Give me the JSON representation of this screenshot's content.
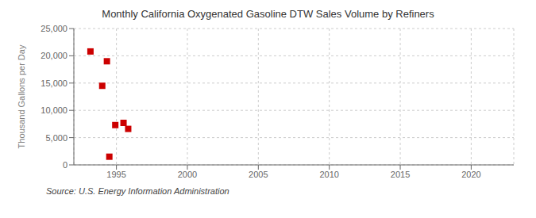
{
  "chart_data": {
    "type": "scatter",
    "title": "Monthly California Oxygenated Gasoline DTW Sales Volume by Refiners",
    "ylabel": "Thousand Gallons per Day",
    "annotation": "Source: U.S. Energy Information Administration",
    "x": [
      1993.17,
      1994.0,
      1994.33,
      1994.5,
      1994.92,
      1995.5,
      1995.83
    ],
    "values": [
      20800,
      14500,
      19000,
      1500,
      7300,
      7700,
      6600
    ],
    "color": "#cc0000",
    "marker": "square",
    "xlim": [
      1992,
      2023
    ],
    "xticks": [
      1995,
      2000,
      2005,
      2010,
      2015,
      2020
    ],
    "ylim": [
      0,
      25000
    ],
    "yticks": [
      0,
      {
        "value": 5000,
        "label": "5,000"
      },
      {
        "value": 10000,
        "label": "10,000"
      },
      {
        "value": 15000,
        "label": "15,000"
      },
      {
        "value": 20000,
        "label": "20,000"
      },
      {
        "value": 25000,
        "label": "25,000"
      }
    ],
    "grid": true
  }
}
